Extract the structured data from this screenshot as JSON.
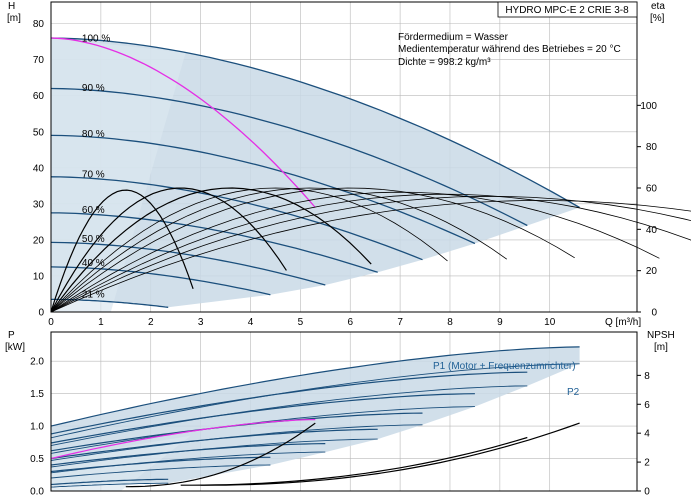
{
  "chart_data": [
    {
      "type": "line",
      "title": "HYDRO MPC-E 2 CRIE 3-8",
      "info_lines": [
        "Fördermedium = Wasser",
        "Medientemperatur während des Betriebes = 20 °C",
        "Dichte = 998.2 kg/m³"
      ],
      "y_label_symbol": "H",
      "y_label_unit": "[m]",
      "y2_label_symbol": "eta",
      "y2_label_unit": "[%]",
      "x_label": "Q [m³/h]",
      "xlim": [
        0,
        11.75
      ],
      "ylim": [
        0,
        86
      ],
      "y2lim": [
        0,
        150
      ],
      "x_ticks": [
        "0",
        "1",
        "2",
        "3",
        "4",
        "5",
        "6",
        "7",
        "8",
        "9",
        "10"
      ],
      "y_ticks": [
        "0",
        "10",
        "20",
        "30",
        "40",
        "50",
        "60",
        "70",
        "80"
      ],
      "y2_ticks": [
        "0",
        "20",
        "40",
        "60",
        "80",
        "100"
      ],
      "grid": true,
      "speed_curves": [
        {
          "label": "100 %",
          "q_max": 10.6,
          "h0": 76,
          "h_end": 29
        },
        {
          "label": "90 %",
          "q_max": 9.55,
          "h0": 62,
          "h_end": 24
        },
        {
          "label": "80 %",
          "q_max": 8.5,
          "h0": 49,
          "h_end": 19
        },
        {
          "label": "70 %",
          "q_max": 7.45,
          "h0": 37.5,
          "h_end": 14.5
        },
        {
          "label": "60 %",
          "q_max": 6.55,
          "h0": 27.5,
          "h_end": 11
        },
        {
          "label": "50 %",
          "q_max": 5.5,
          "h0": 19.3,
          "h_end": 7.5
        },
        {
          "label": "40 %",
          "q_max": 4.4,
          "h0": 12.5,
          "h_end": 4.8
        },
        {
          "label": "21 %",
          "q_max": 2.35,
          "h0": 3.5,
          "h_end": 1.3
        }
      ],
      "single_pump_curve": {
        "q_max": 5.3,
        "h0": 76,
        "h_end": 29
      }
    },
    {
      "type": "line",
      "y_label_symbol": "P",
      "y_label_unit": "[kW]",
      "y2_label_symbol": "NPSH",
      "y2_label_unit": "[m]",
      "xlim": [
        0,
        11.75
      ],
      "ylim": [
        0,
        2.45
      ],
      "y2lim": [
        0,
        11
      ],
      "y_ticks": [
        "0.0",
        "0.5",
        "1.0",
        "1.5",
        "2.0"
      ],
      "y2_ticks": [
        "0",
        "2",
        "4",
        "6",
        "8"
      ],
      "grid": true,
      "series_labels": [
        "P1 (Motor + Frequenzumrichter)",
        "P2"
      ],
      "p1_curves": [
        {
          "q_max": 10.6,
          "p0": 1.0,
          "p_end": 2.22
        },
        {
          "q_max": 9.55,
          "p0": 0.88,
          "p_end": 1.83
        },
        {
          "q_max": 8.5,
          "p0": 0.74,
          "p_end": 1.5
        },
        {
          "q_max": 7.45,
          "p0": 0.62,
          "p_end": 1.2
        },
        {
          "q_max": 6.55,
          "p0": 0.5,
          "p_end": 0.95
        },
        {
          "q_max": 5.5,
          "p0": 0.4,
          "p_end": 0.73
        },
        {
          "q_max": 4.4,
          "p0": 0.3,
          "p_end": 0.52
        },
        {
          "q_max": 2.35,
          "p0": 0.1,
          "p_end": 0.18
        }
      ],
      "p2_curves": [
        {
          "q_max": 10.6,
          "p0": 0.82,
          "p_end": 1.96
        },
        {
          "q_max": 9.55,
          "p0": 0.7,
          "p_end": 1.62
        },
        {
          "q_max": 8.5,
          "p0": 0.58,
          "p_end": 1.3
        },
        {
          "q_max": 7.45,
          "p0": 0.47,
          "p_end": 1.02
        },
        {
          "q_max": 6.55,
          "p0": 0.37,
          "p_end": 0.8
        },
        {
          "q_max": 5.5,
          "p0": 0.28,
          "p_end": 0.6
        },
        {
          "q_max": 4.4,
          "p0": 0.2,
          "p_end": 0.4
        },
        {
          "q_max": 2.35,
          "p0": 0.06,
          "p_end": 0.12
        }
      ],
      "single_pump_p1": {
        "q_max": 5.3,
        "p0": 0.5,
        "p_end": 1.1
      },
      "npsh_curves": [
        {
          "q_max": 10.6,
          "q_start": 3,
          "n_start": 0.4,
          "n_end": 4.7
        },
        {
          "q_max": 9.55,
          "q_start": 2.6,
          "n_start": 0.4,
          "n_end": 3.7
        },
        {
          "q_max": 5.3,
          "q_start": 1.5,
          "n_start": 0.3,
          "n_end": 4.7
        }
      ]
    }
  ]
}
